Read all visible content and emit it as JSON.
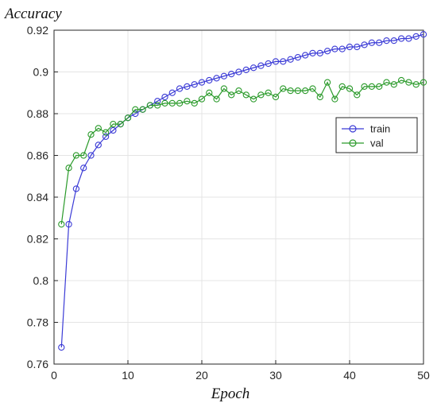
{
  "chart_data": {
    "type": "line",
    "xlabel": "Epoch",
    "ylabel": "Accuracy",
    "xlim": [
      0,
      50
    ],
    "ylim": [
      0.76,
      0.92
    ],
    "xticks": [
      0,
      10,
      20,
      30,
      40,
      50
    ],
    "yticks": [
      0.76,
      0.78,
      0.8,
      0.82,
      0.84,
      0.86,
      0.88,
      0.9,
      0.92
    ],
    "grid": true,
    "legend_position": "right",
    "x": [
      1,
      2,
      3,
      4,
      5,
      6,
      7,
      8,
      9,
      10,
      11,
      12,
      13,
      14,
      15,
      16,
      17,
      18,
      19,
      20,
      21,
      22,
      23,
      24,
      25,
      26,
      27,
      28,
      29,
      30,
      31,
      32,
      33,
      34,
      35,
      36,
      37,
      38,
      39,
      40,
      41,
      42,
      43,
      44,
      45,
      46,
      47,
      48,
      49,
      50
    ],
    "series": [
      {
        "name": "train",
        "color": "#3b3bd6",
        "values": [
          0.768,
          0.827,
          0.844,
          0.854,
          0.86,
          0.865,
          0.869,
          0.872,
          0.875,
          0.878,
          0.88,
          0.882,
          0.884,
          0.886,
          0.888,
          0.89,
          0.892,
          0.893,
          0.894,
          0.895,
          0.896,
          0.897,
          0.898,
          0.899,
          0.9,
          0.901,
          0.902,
          0.903,
          0.904,
          0.905,
          0.905,
          0.906,
          0.907,
          0.908,
          0.909,
          0.909,
          0.91,
          0.911,
          0.911,
          0.912,
          0.912,
          0.913,
          0.914,
          0.914,
          0.915,
          0.915,
          0.916,
          0.916,
          0.917,
          0.918
        ]
      },
      {
        "name": "val",
        "color": "#2a9a2a",
        "values": [
          0.827,
          0.854,
          0.86,
          0.86,
          0.87,
          0.873,
          0.871,
          0.875,
          0.875,
          0.878,
          0.882,
          0.882,
          0.884,
          0.884,
          0.885,
          0.885,
          0.885,
          0.886,
          0.885,
          0.887,
          0.89,
          0.887,
          0.892,
          0.889,
          0.891,
          0.889,
          0.887,
          0.889,
          0.89,
          0.888,
          0.892,
          0.891,
          0.891,
          0.891,
          0.892,
          0.888,
          0.895,
          0.887,
          0.893,
          0.892,
          0.889,
          0.893,
          0.893,
          0.893,
          0.895,
          0.894,
          0.896,
          0.895,
          0.894,
          0.895
        ]
      }
    ]
  }
}
